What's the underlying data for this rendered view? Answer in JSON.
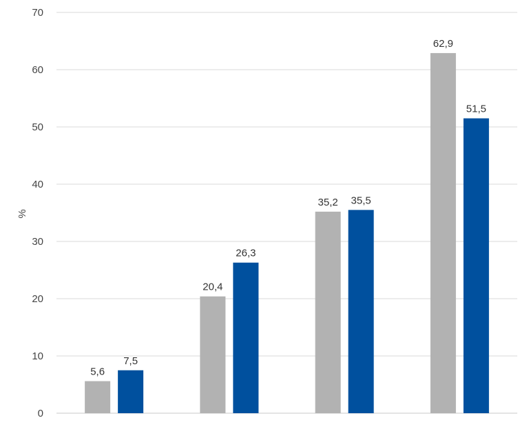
{
  "chart_data": {
    "type": "bar",
    "title": "",
    "xlabel": "",
    "ylabel": "%",
    "ylim": [
      0,
      70
    ],
    "yticks": [
      0,
      10,
      20,
      30,
      40,
      50,
      60,
      70
    ],
    "ytick_labels": [
      "0",
      "10",
      "20",
      "30",
      "40",
      "50",
      "60",
      "70"
    ],
    "grid": true,
    "legend": "none",
    "categories": [
      "",
      "",
      "",
      ""
    ],
    "series": [
      {
        "color": "#b2b2b2",
        "values": [
          5.6,
          20.4,
          35.2,
          62.9
        ],
        "labels": [
          "5,6",
          "20,4",
          "35,2",
          "62,9"
        ]
      },
      {
        "color": "#00509e",
        "values": [
          7.5,
          26.3,
          35.5,
          51.5
        ],
        "labels": [
          "7,5",
          "26,3",
          "35,5",
          "51,5"
        ]
      }
    ]
  }
}
